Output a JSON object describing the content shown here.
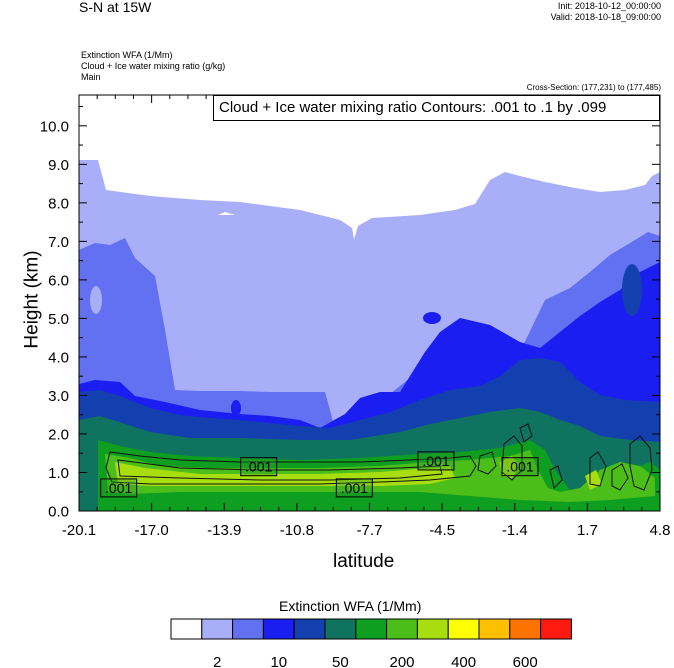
{
  "header": {
    "title": "S-N at 15W",
    "init": "Init: 2018-10-12_00:00:00",
    "valid": "Valid: 2018-10-18_09:00:00",
    "field1": "Extinction WFA   (1/Mm)",
    "field2": "Cloud + Ice water mixing ratio   (g/kg)",
    "field3": "Main",
    "cross_section": "Cross-Section: (177,231) to (177,485)"
  },
  "chart_data": {
    "type": "heatmap",
    "title": "S-N at 15W",
    "contour_info": "Cloud + Ice water mixing ratio Contours: .001 to .1 by .099",
    "xlabel": "latitude",
    "ylabel": "Height (km)",
    "xlim": [
      -20.1,
      4.8
    ],
    "ylim": [
      0.0,
      10.8
    ],
    "x_ticks": [
      "-20.1",
      "-17.0",
      "-13.9",
      "-10.8",
      "-7.7",
      "-4.5",
      "-1.4",
      "1.7",
      "4.8"
    ],
    "y_ticks": [
      "0.0",
      "1.0",
      "2.0",
      "3.0",
      "4.0",
      "5.0",
      "6.0",
      "7.0",
      "8.0",
      "9.0",
      "10.0"
    ],
    "contour_labels": [
      {
        "text": ".001",
        "lat": -18.4,
        "h": 0.6
      },
      {
        "text": ".001",
        "lat": -12.4,
        "h": 1.15
      },
      {
        "text": ".001",
        "lat": -8.3,
        "h": 0.6
      },
      {
        "text": ".001",
        "lat": -4.8,
        "h": 1.3
      },
      {
        "text": ".001",
        "lat": -1.2,
        "h": 1.15
      }
    ],
    "colorbar": {
      "title": "Extinction WFA  (1/Mm)",
      "colors": [
        "#ffffff",
        "#a8aef8",
        "#6270f2",
        "#1a1ef0",
        "#1340ae",
        "#107360",
        "#0e9e20",
        "#4cbe1a",
        "#a8de10",
        "#fefe00",
        "#fec000",
        "#fe7200",
        "#fe1a10"
      ],
      "tick_labels": [
        "2",
        "10",
        "50",
        "200",
        "400",
        "600"
      ]
    }
  }
}
